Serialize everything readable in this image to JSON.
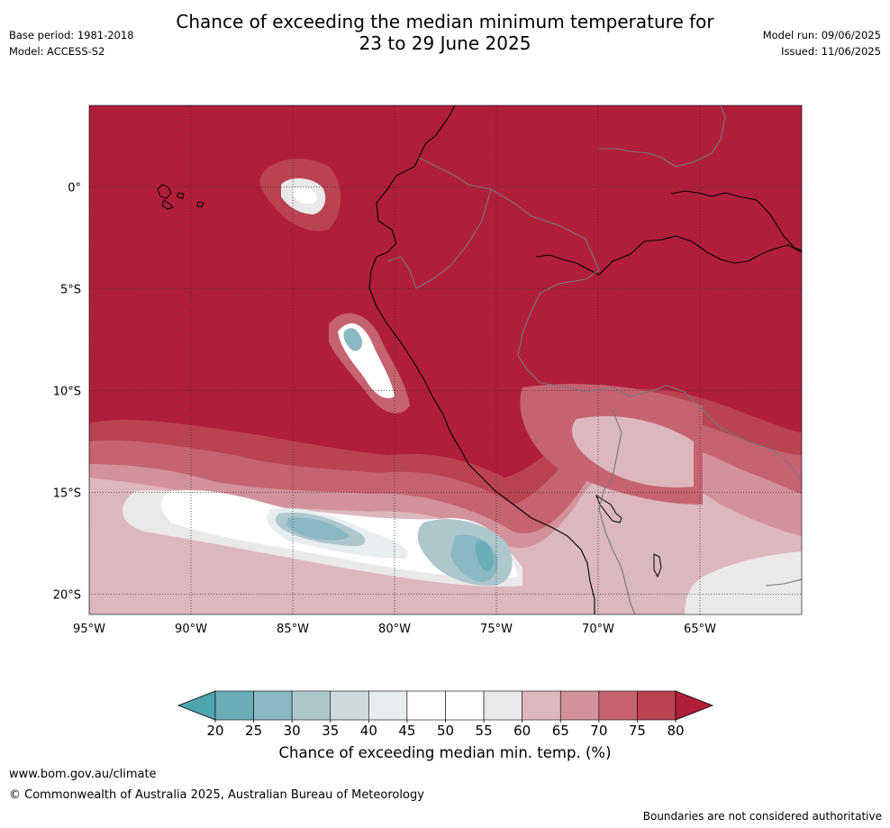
{
  "title": {
    "line1": "Chance of exceeding the median minimum temperature for",
    "line2": "23 to 29 June 2025"
  },
  "meta_left": {
    "base_period": "Base period: 1981-2018",
    "model": "Model: ACCESS-S2"
  },
  "meta_right": {
    "model_run": "Model run: 09/06/2025",
    "issued": "Issued: 11/06/2025"
  },
  "map": {
    "lon_labels": [
      "95°W",
      "90°W",
      "85°W",
      "80°W",
      "75°W",
      "70°W",
      "65°W"
    ],
    "lat_labels": [
      "0°",
      "5°S",
      "10°S",
      "15°S",
      "20°S"
    ],
    "lon_range": [
      -95,
      -60
    ],
    "lat_range": [
      -21,
      4
    ],
    "lon_ticks": [
      -95,
      -90,
      -85,
      -80,
      -75,
      -70,
      -65
    ],
    "lat_ticks": [
      0,
      -5,
      -10,
      -15,
      -20
    ],
    "grid": true,
    "background_color": "#b01e3a"
  },
  "colorbar": {
    "title": "Chance of exceeding median min. temp. (%)",
    "tick_labels": [
      "20",
      "25",
      "30",
      "35",
      "40",
      "45",
      "50",
      "55",
      "60",
      "65",
      "70",
      "75",
      "80"
    ],
    "under_color": "#4ea5b0",
    "over_color": "#b01e3a",
    "colors": [
      "#6aadb9",
      "#8ab8c3",
      "#adc7cd",
      "#cfd9db",
      "#e8edef",
      "#ffffff",
      "#ffffff",
      "#ebe8e9",
      "#dcb7bd",
      "#d2919b",
      "#c66370",
      "#ba4352"
    ]
  },
  "footer": {
    "url": "www.bom.gov.au/climate",
    "copyright": "© Commonwealth of Australia 2025, Australian Bureau of Meteorology",
    "note": "Boundaries are not considered authoritative"
  }
}
